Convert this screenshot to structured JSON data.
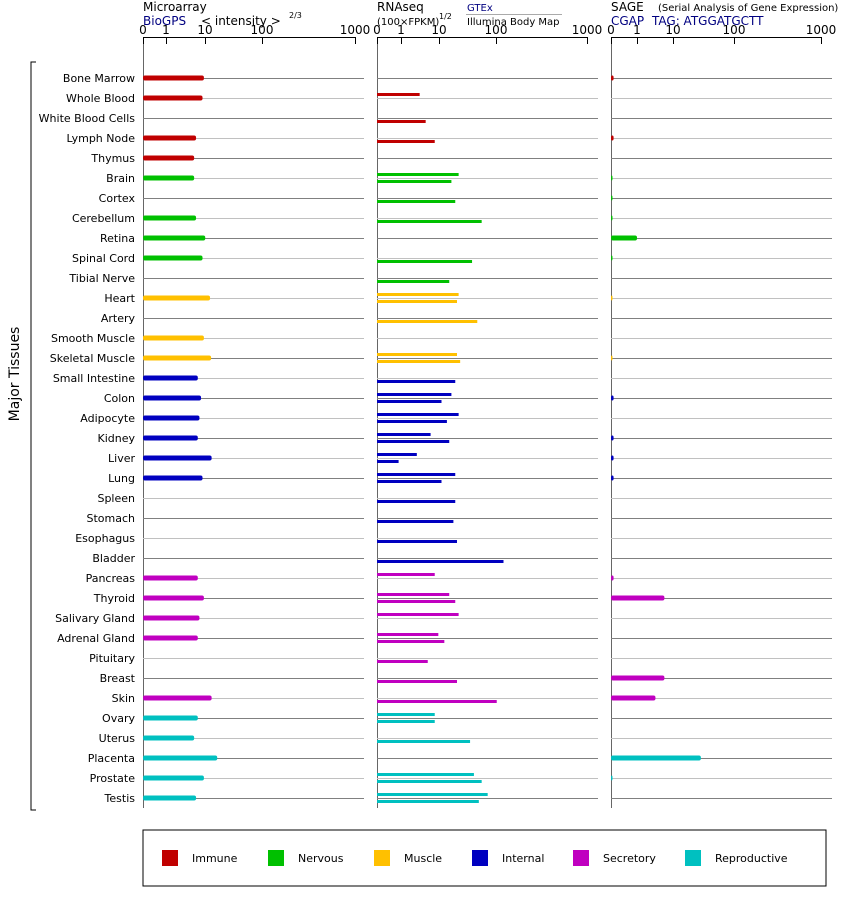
{
  "chart_data": {
    "type": "bar",
    "ylabel": "Major Tissues",
    "categories": [
      "Bone Marrow",
      "Whole Blood",
      "White Blood Cells",
      "Lymph Node",
      "Thymus",
      "Brain",
      "Cortex",
      "Cerebellum",
      "Retina",
      "Spinal Cord",
      "Tibial Nerve",
      "Heart",
      "Artery",
      "Smooth Muscle",
      "Skeletal Muscle",
      "Small Intestine",
      "Colon",
      "Adipocyte",
      "Kidney",
      "Liver",
      "Lung",
      "Spleen",
      "Stomach",
      "Esophagus",
      "Bladder",
      "Pancreas",
      "Thyroid",
      "Salivary Gland",
      "Adrenal Gland",
      "Pituitary",
      "Breast",
      "Skin",
      "Ovary",
      "Uterus",
      "Placenta",
      "Prostate",
      "Testis"
    ],
    "groups": [
      "Immune",
      "Immune",
      "Immune",
      "Immune",
      "Immune",
      "Nervous",
      "Nervous",
      "Nervous",
      "Nervous",
      "Nervous",
      "Nervous",
      "Muscle",
      "Muscle",
      "Muscle",
      "Muscle",
      "Internal",
      "Internal",
      "Internal",
      "Internal",
      "Internal",
      "Internal",
      "Internal",
      "Internal",
      "Internal",
      "Internal",
      "Secretory",
      "Secretory",
      "Secretory",
      "Secretory",
      "Secretory",
      "Secretory",
      "Secretory",
      "Reproductive",
      "Reproductive",
      "Reproductive",
      "Reproductive",
      "Reproductive"
    ],
    "legend": [
      {
        "name": "Immune",
        "color": "#c00000"
      },
      {
        "name": "Nervous",
        "color": "#00c000"
      },
      {
        "name": "Muscle",
        "color": "#ffc000"
      },
      {
        "name": "Internal",
        "color": "#0000c0"
      },
      {
        "name": "Secretory",
        "color": "#c000c0"
      },
      {
        "name": "Reproductive",
        "color": "#00c0c0"
      }
    ],
    "legend_placement": "bottom",
    "axis_ticks": [
      "0",
      "1",
      "10",
      "100",
      "1000"
    ],
    "panels": [
      {
        "title": "Microarray",
        "subtitle": "BioGPS",
        "unit_label": "< intensity >",
        "unit_exponent": "2/3",
        "xlim": [
          0,
          1000
        ],
        "series": [
          {
            "name": "BioGPS",
            "values": [
              4.0,
              3.8,
              null,
              3.0,
              2.8,
              2.8,
              null,
              3.0,
              4.2,
              3.8,
              null,
              5.0,
              null,
              4.0,
              5.2,
              3.2,
              3.6,
              3.4,
              3.2,
              5.3,
              3.8,
              null,
              null,
              null,
              null,
              3.2,
              4.0,
              3.4,
              3.2,
              null,
              null,
              5.3,
              3.2,
              2.8,
              6.5,
              4.0,
              3.0
            ]
          }
        ]
      },
      {
        "title": "RNAseq",
        "unit_label": "(100×FPKM)",
        "unit_exponent": "1/2",
        "xlim": [
          0,
          1000
        ],
        "series": [
          {
            "name": "GTEx",
            "values": [
              null,
              2.0,
              null,
              null,
              null,
              8.5,
              null,
              null,
              null,
              null,
              null,
              8.5,
              null,
              null,
              8.0,
              null,
              6.5,
              8.5,
              3.0,
              1.8,
              7.5,
              null,
              null,
              null,
              null,
              3.5,
              6.0,
              8.5,
              4.0,
              null,
              null,
              null,
              3.5,
              null,
              null,
              15.0,
              25.0
            ]
          },
          {
            "name": "Illumina Body Map",
            "values": [
              null,
              null,
              2.5,
              3.5,
              null,
              6.5,
              7.5,
              20.0,
              null,
              14.0,
              6.0,
              8.0,
              17.0,
              null,
              9.0,
              7.5,
              4.5,
              5.5,
              6.0,
              0.9,
              4.5,
              7.5,
              7.0,
              8.0,
              45.0,
              null,
              7.5,
              null,
              5.0,
              2.7,
              8.0,
              35.0,
              3.5,
              13.0,
              null,
              20.0,
              18.0
            ]
          }
        ]
      },
      {
        "title": "SAGE",
        "subtitle_note": "(Serial Analysis of Gene Expression)",
        "tag_prefix": "CGAP",
        "tag": "TAG: ATGGATGCTT",
        "xlim": [
          0,
          1000
        ],
        "series": [
          {
            "name": "CGAP",
            "values": [
              0.1,
              null,
              null,
              0.1,
              null,
              0.05,
              0.05,
              0.05,
              1.0,
              0.05,
              null,
              0.02,
              null,
              null,
              0.02,
              null,
              0.1,
              null,
              0.1,
              0.1,
              0.1,
              null,
              null,
              null,
              null,
              0.1,
              2.8,
              null,
              null,
              null,
              2.8,
              2.0,
              null,
              null,
              11.0,
              0.05,
              null
            ]
          }
        ]
      }
    ]
  }
}
